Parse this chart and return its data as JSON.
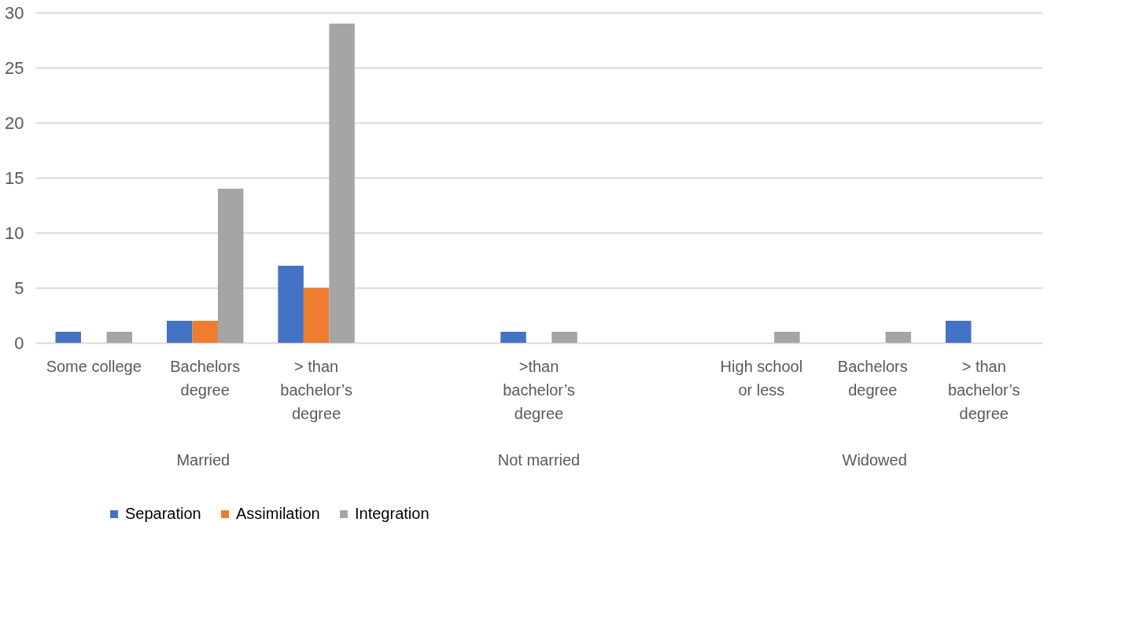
{
  "chart_data": {
    "type": "bar",
    "categories": [
      "Some college",
      "Bachelors degree",
      "> than bachelor’s degree",
      null,
      ">than bachelor’s degree",
      null,
      "High school or less",
      "Bachelors degree",
      "> than bachelor’s degree"
    ],
    "series": [
      {
        "name": "Separation",
        "color": "#4472c4",
        "values": [
          1,
          2,
          7,
          null,
          1,
          null,
          0,
          0,
          2
        ]
      },
      {
        "name": "Assimilation",
        "color": "#ed7d31",
        "values": [
          0,
          2,
          5,
          null,
          null,
          null,
          null,
          null,
          null
        ]
      },
      {
        "name": "Integration",
        "color": "#a5a5a5",
        "values": [
          1,
          14,
          29,
          null,
          1,
          null,
          1,
          1,
          0
        ]
      }
    ],
    "ylim": [
      0,
      30
    ],
    "yticks": [
      0,
      5,
      10,
      15,
      20,
      25,
      30
    ],
    "grid": "y",
    "legend": "bottom",
    "annotations": [
      "Married",
      "Not married",
      "Widowed"
    ]
  }
}
